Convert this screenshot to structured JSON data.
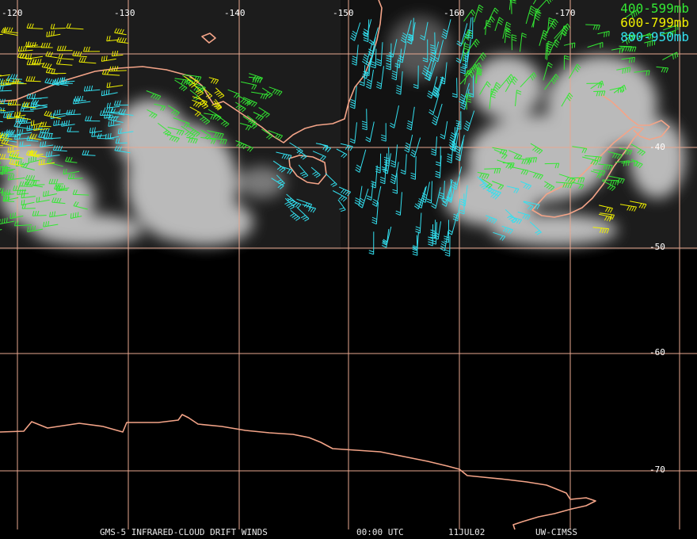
{
  "map": {
    "lon_labels": [
      "-120",
      "-130",
      "-140",
      "-150",
      "-160",
      "-170"
    ],
    "lat_labels": [
      "-40",
      "-50",
      "-60",
      "-70"
    ],
    "colors": {
      "grid": "#e8a890",
      "coast": "#f4a488",
      "band_400_599": "#33e833",
      "band_600_799": "#f0f000",
      "band_800_950": "#33e0f0"
    }
  },
  "legend": {
    "items": [
      {
        "label": "400-599mb",
        "color": "#33e833"
      },
      {
        "label": "600-799mb",
        "color": "#f0f000"
      },
      {
        "label": "800-950mb",
        "color": "#33e0f0"
      }
    ]
  },
  "footer": {
    "title": "GMS-5 INFRARED-CLOUD DRIFT WINDS",
    "time": "00:00 UTC",
    "date": "11JUL02",
    "source": "UW-CIMSS"
  }
}
